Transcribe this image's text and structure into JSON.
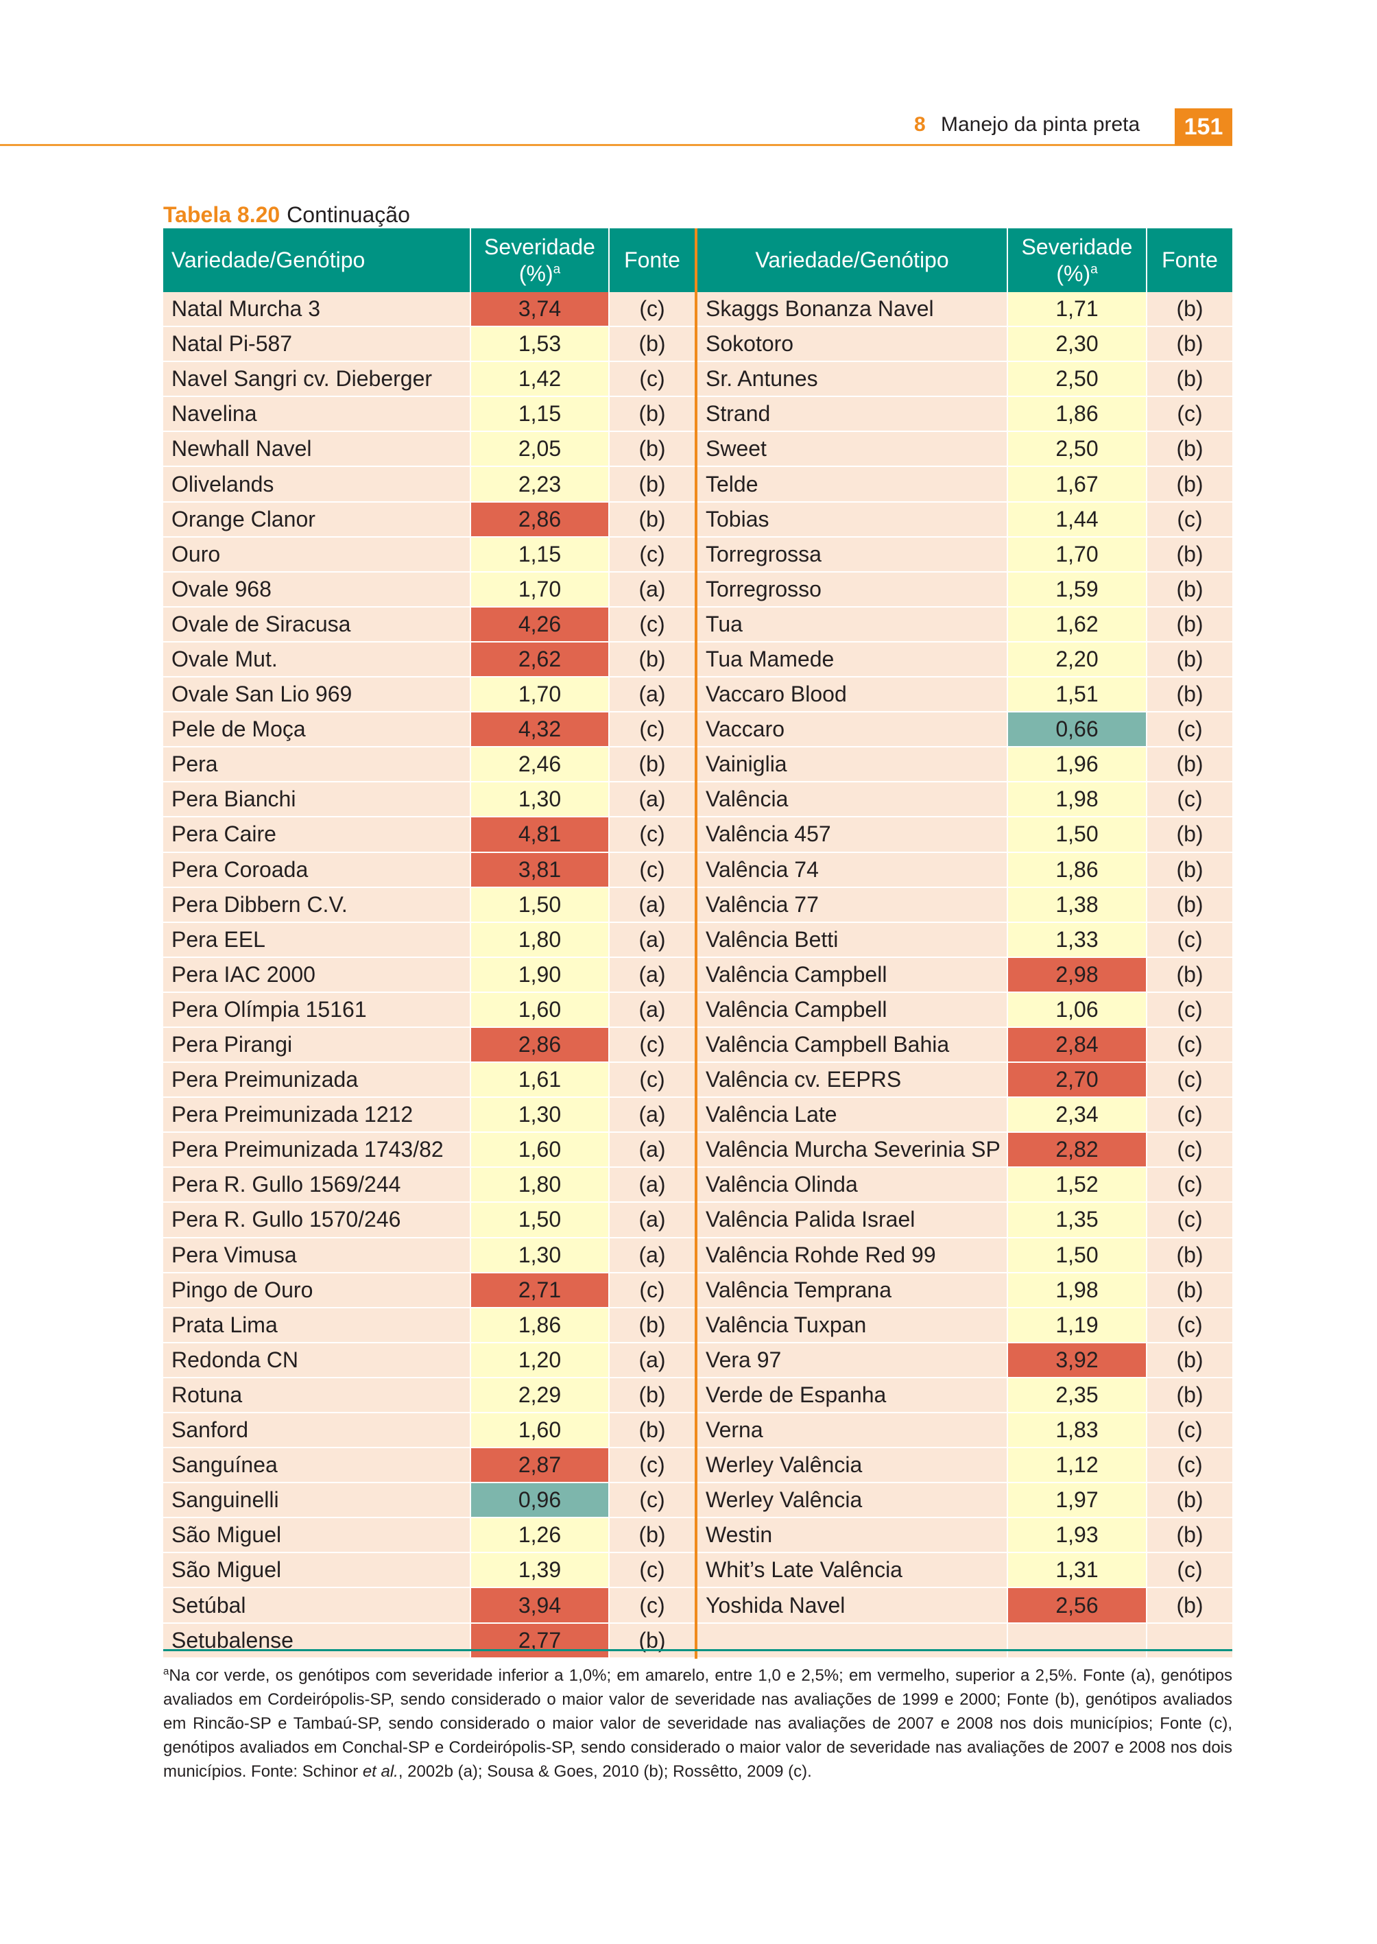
{
  "header": {
    "chapter_number": "8",
    "chapter_title": "Manejo da pinta preta",
    "page_number": "151"
  },
  "caption": {
    "label": "Tabela 8.20",
    "text": "Continuação"
  },
  "table": {
    "headers": {
      "variety": "Variedade/Genótipo",
      "severity_line1": "Severidade",
      "severity_line2": "(%)",
      "severity_sup": "a",
      "source": "Fonte"
    },
    "colors": {
      "green": "#7db6ac",
      "yellow": "#fffcc9",
      "red": "#e0654e",
      "name_bg": "#fbe7d7",
      "header_bg": "#009383",
      "accent": "#f08a1c"
    },
    "left_rows": [
      {
        "name": "Natal Murcha 3",
        "severity": "3,74",
        "source": "(c)",
        "level": "r"
      },
      {
        "name": "Natal Pi-587",
        "severity": "1,53",
        "source": "(b)",
        "level": "y"
      },
      {
        "name": "Navel Sangri cv. Dieberger",
        "severity": "1,42",
        "source": "(c)",
        "level": "y"
      },
      {
        "name": "Navelina",
        "severity": "1,15",
        "source": "(b)",
        "level": "y"
      },
      {
        "name": "Newhall Navel",
        "severity": "2,05",
        "source": "(b)",
        "level": "y"
      },
      {
        "name": "Olivelands",
        "severity": "2,23",
        "source": "(b)",
        "level": "y"
      },
      {
        "name": "Orange Clanor",
        "severity": "2,86",
        "source": "(b)",
        "level": "r"
      },
      {
        "name": "Ouro",
        "severity": "1,15",
        "source": "(c)",
        "level": "y"
      },
      {
        "name": "Ovale 968",
        "severity": "1,70",
        "source": "(a)",
        "level": "y"
      },
      {
        "name": "Ovale de Siracusa",
        "severity": "4,26",
        "source": "(c)",
        "level": "r"
      },
      {
        "name": "Ovale Mut.",
        "severity": "2,62",
        "source": "(b)",
        "level": "r"
      },
      {
        "name": "Ovale San Lio 969",
        "severity": "1,70",
        "source": "(a)",
        "level": "y"
      },
      {
        "name": "Pele de Moça",
        "severity": "4,32",
        "source": "(c)",
        "level": "r"
      },
      {
        "name": "Pera",
        "severity": "2,46",
        "source": "(b)",
        "level": "y"
      },
      {
        "name": "Pera Bianchi",
        "severity": "1,30",
        "source": "(a)",
        "level": "y"
      },
      {
        "name": "Pera Caire",
        "severity": "4,81",
        "source": "(c)",
        "level": "r"
      },
      {
        "name": "Pera Coroada",
        "severity": "3,81",
        "source": "(c)",
        "level": "r"
      },
      {
        "name": "Pera Dibbern C.V.",
        "severity": "1,50",
        "source": "(a)",
        "level": "y"
      },
      {
        "name": "Pera EEL",
        "severity": "1,80",
        "source": "(a)",
        "level": "y"
      },
      {
        "name": "Pera IAC 2000",
        "severity": "1,90",
        "source": "(a)",
        "level": "y"
      },
      {
        "name": "Pera Olímpia 15161",
        "severity": "1,60",
        "source": "(a)",
        "level": "y"
      },
      {
        "name": "Pera Pirangi",
        "severity": "2,86",
        "source": "(c)",
        "level": "r"
      },
      {
        "name": "Pera Preimunizada",
        "severity": "1,61",
        "source": "(c)",
        "level": "y"
      },
      {
        "name": "Pera Preimunizada 1212",
        "severity": "1,30",
        "source": "(a)",
        "level": "y"
      },
      {
        "name": "Pera Preimunizada 1743/82",
        "severity": "1,60",
        "source": "(a)",
        "level": "y"
      },
      {
        "name": "Pera R. Gullo 1569/244",
        "severity": "1,80",
        "source": "(a)",
        "level": "y"
      },
      {
        "name": "Pera R. Gullo 1570/246",
        "severity": "1,50",
        "source": "(a)",
        "level": "y"
      },
      {
        "name": "Pera Vimusa",
        "severity": "1,30",
        "source": "(a)",
        "level": "y"
      },
      {
        "name": "Pingo de Ouro",
        "severity": "2,71",
        "source": "(c)",
        "level": "r"
      },
      {
        "name": "Prata Lima",
        "severity": "1,86",
        "source": "(b)",
        "level": "y"
      },
      {
        "name": "Redonda CN",
        "severity": "1,20",
        "source": "(a)",
        "level": "y"
      },
      {
        "name": "Rotuna",
        "severity": "2,29",
        "source": "(b)",
        "level": "y"
      },
      {
        "name": "Sanford",
        "severity": "1,60",
        "source": "(b)",
        "level": "y"
      },
      {
        "name": "Sanguínea",
        "severity": "2,87",
        "source": "(c)",
        "level": "r"
      },
      {
        "name": "Sanguinelli",
        "severity": "0,96",
        "source": "(c)",
        "level": "g"
      },
      {
        "name": "São Miguel",
        "severity": "1,26",
        "source": "(b)",
        "level": "y"
      },
      {
        "name": "São Miguel",
        "severity": "1,39",
        "source": "(c)",
        "level": "y"
      },
      {
        "name": "Setúbal",
        "severity": "3,94",
        "source": "(c)",
        "level": "r"
      },
      {
        "name": "Setubalense",
        "severity": "2,77",
        "source": "(b)",
        "level": "r"
      }
    ],
    "right_rows": [
      {
        "name": "Skaggs Bonanza Navel",
        "severity": "1,71",
        "source": "(b)",
        "level": "y"
      },
      {
        "name": "Sokotoro",
        "severity": "2,30",
        "source": "(b)",
        "level": "y"
      },
      {
        "name": "Sr. Antunes",
        "severity": "2,50",
        "source": "(b)",
        "level": "y"
      },
      {
        "name": "Strand",
        "severity": "1,86",
        "source": "(c)",
        "level": "y"
      },
      {
        "name": "Sweet",
        "severity": "2,50",
        "source": "(b)",
        "level": "y"
      },
      {
        "name": "Telde",
        "severity": "1,67",
        "source": "(b)",
        "level": "y"
      },
      {
        "name": "Tobias",
        "severity": "1,44",
        "source": "(c)",
        "level": "y"
      },
      {
        "name": "Torregrossa",
        "severity": "1,70",
        "source": "(b)",
        "level": "y"
      },
      {
        "name": "Torregrosso",
        "severity": "1,59",
        "source": "(b)",
        "level": "y"
      },
      {
        "name": "Tua",
        "severity": "1,62",
        "source": "(b)",
        "level": "y"
      },
      {
        "name": "Tua Mamede",
        "severity": "2,20",
        "source": "(b)",
        "level": "y"
      },
      {
        "name": "Vaccaro Blood",
        "severity": "1,51",
        "source": "(b)",
        "level": "y"
      },
      {
        "name": "Vaccaro",
        "severity": "0,66",
        "source": "(c)",
        "level": "g"
      },
      {
        "name": "Vainiglia",
        "severity": "1,96",
        "source": "(b)",
        "level": "y"
      },
      {
        "name": "Valência",
        "severity": "1,98",
        "source": "(c)",
        "level": "y"
      },
      {
        "name": "Valência 457",
        "severity": "1,50",
        "source": "(b)",
        "level": "y"
      },
      {
        "name": "Valência 74",
        "severity": "1,86",
        "source": "(b)",
        "level": "y"
      },
      {
        "name": "Valência 77",
        "severity": "1,38",
        "source": "(b)",
        "level": "y"
      },
      {
        "name": "Valência Betti",
        "severity": "1,33",
        "source": "(c)",
        "level": "y"
      },
      {
        "name": "Valência Campbell",
        "severity": "2,98",
        "source": "(b)",
        "level": "r"
      },
      {
        "name": "Valência Campbell",
        "severity": "1,06",
        "source": "(c)",
        "level": "y"
      },
      {
        "name": "Valência Campbell Bahia",
        "severity": "2,84",
        "source": "(c)",
        "level": "r"
      },
      {
        "name": "Valência cv. EEPRS",
        "severity": "2,70",
        "source": "(c)",
        "level": "r"
      },
      {
        "name": "Valência Late",
        "severity": "2,34",
        "source": "(c)",
        "level": "y"
      },
      {
        "name": "Valência Murcha Severinia SP",
        "severity": "2,82",
        "source": "(c)",
        "level": "r"
      },
      {
        "name": "Valência Olinda",
        "severity": "1,52",
        "source": "(c)",
        "level": "y"
      },
      {
        "name": "Valência Palida Israel",
        "severity": "1,35",
        "source": "(c)",
        "level": "y"
      },
      {
        "name": "Valência Rohde Red 99",
        "severity": "1,50",
        "source": "(b)",
        "level": "y"
      },
      {
        "name": "Valência Temprana",
        "severity": "1,98",
        "source": "(b)",
        "level": "y"
      },
      {
        "name": "Valência Tuxpan",
        "severity": "1,19",
        "source": "(c)",
        "level": "y"
      },
      {
        "name": "Vera 97",
        "severity": "3,92",
        "source": "(b)",
        "level": "r"
      },
      {
        "name": "Verde de Espanha",
        "severity": "2,35",
        "source": "(b)",
        "level": "y"
      },
      {
        "name": "Verna",
        "severity": "1,83",
        "source": "(c)",
        "level": "y"
      },
      {
        "name": "Werley Valência",
        "severity": "1,12",
        "source": "(c)",
        "level": "y"
      },
      {
        "name": "Werley Valência",
        "severity": "1,97",
        "source": "(b)",
        "level": "y"
      },
      {
        "name": "Westin",
        "severity": "1,93",
        "source": "(b)",
        "level": "y"
      },
      {
        "name": "Whit’s Late Valência",
        "severity": "1,31",
        "source": "(c)",
        "level": "y"
      },
      {
        "name": "Yoshida Navel",
        "severity": "2,56",
        "source": "(b)",
        "level": "r"
      },
      {
        "name": "",
        "severity": "",
        "source": "",
        "level": "e"
      }
    ]
  },
  "footnote": {
    "marker": "a",
    "text_before_italic": "Na cor verde, os genótipos com severidade inferior a 1,0%; em amarelo, entre 1,0 e 2,5%; em vermelho, superior a 2,5%. Fonte (a), genótipos avaliados em Cordeirópolis-SP, sendo considerado o maior valor de severidade nas avaliações de 1999 e 2000; Fonte (b), genótipos avaliados em Rincão-SP e Tambaú-SP, sendo considerado o maior valor de severidade nas avaliações de 2007 e 2008 nos dois municípios; Fonte (c), genótipos avaliados em Conchal-SP e Cordeirópolis-SP, sendo considerado o maior valor de severidade nas avaliações de 2007 e 2008 nos dois municípios. Fonte: Schinor ",
    "italic": "et al.",
    "text_after_italic": ", 2002b (a); Sousa & Goes, 2010 (b); Rossêtto, 2009 (c)."
  }
}
